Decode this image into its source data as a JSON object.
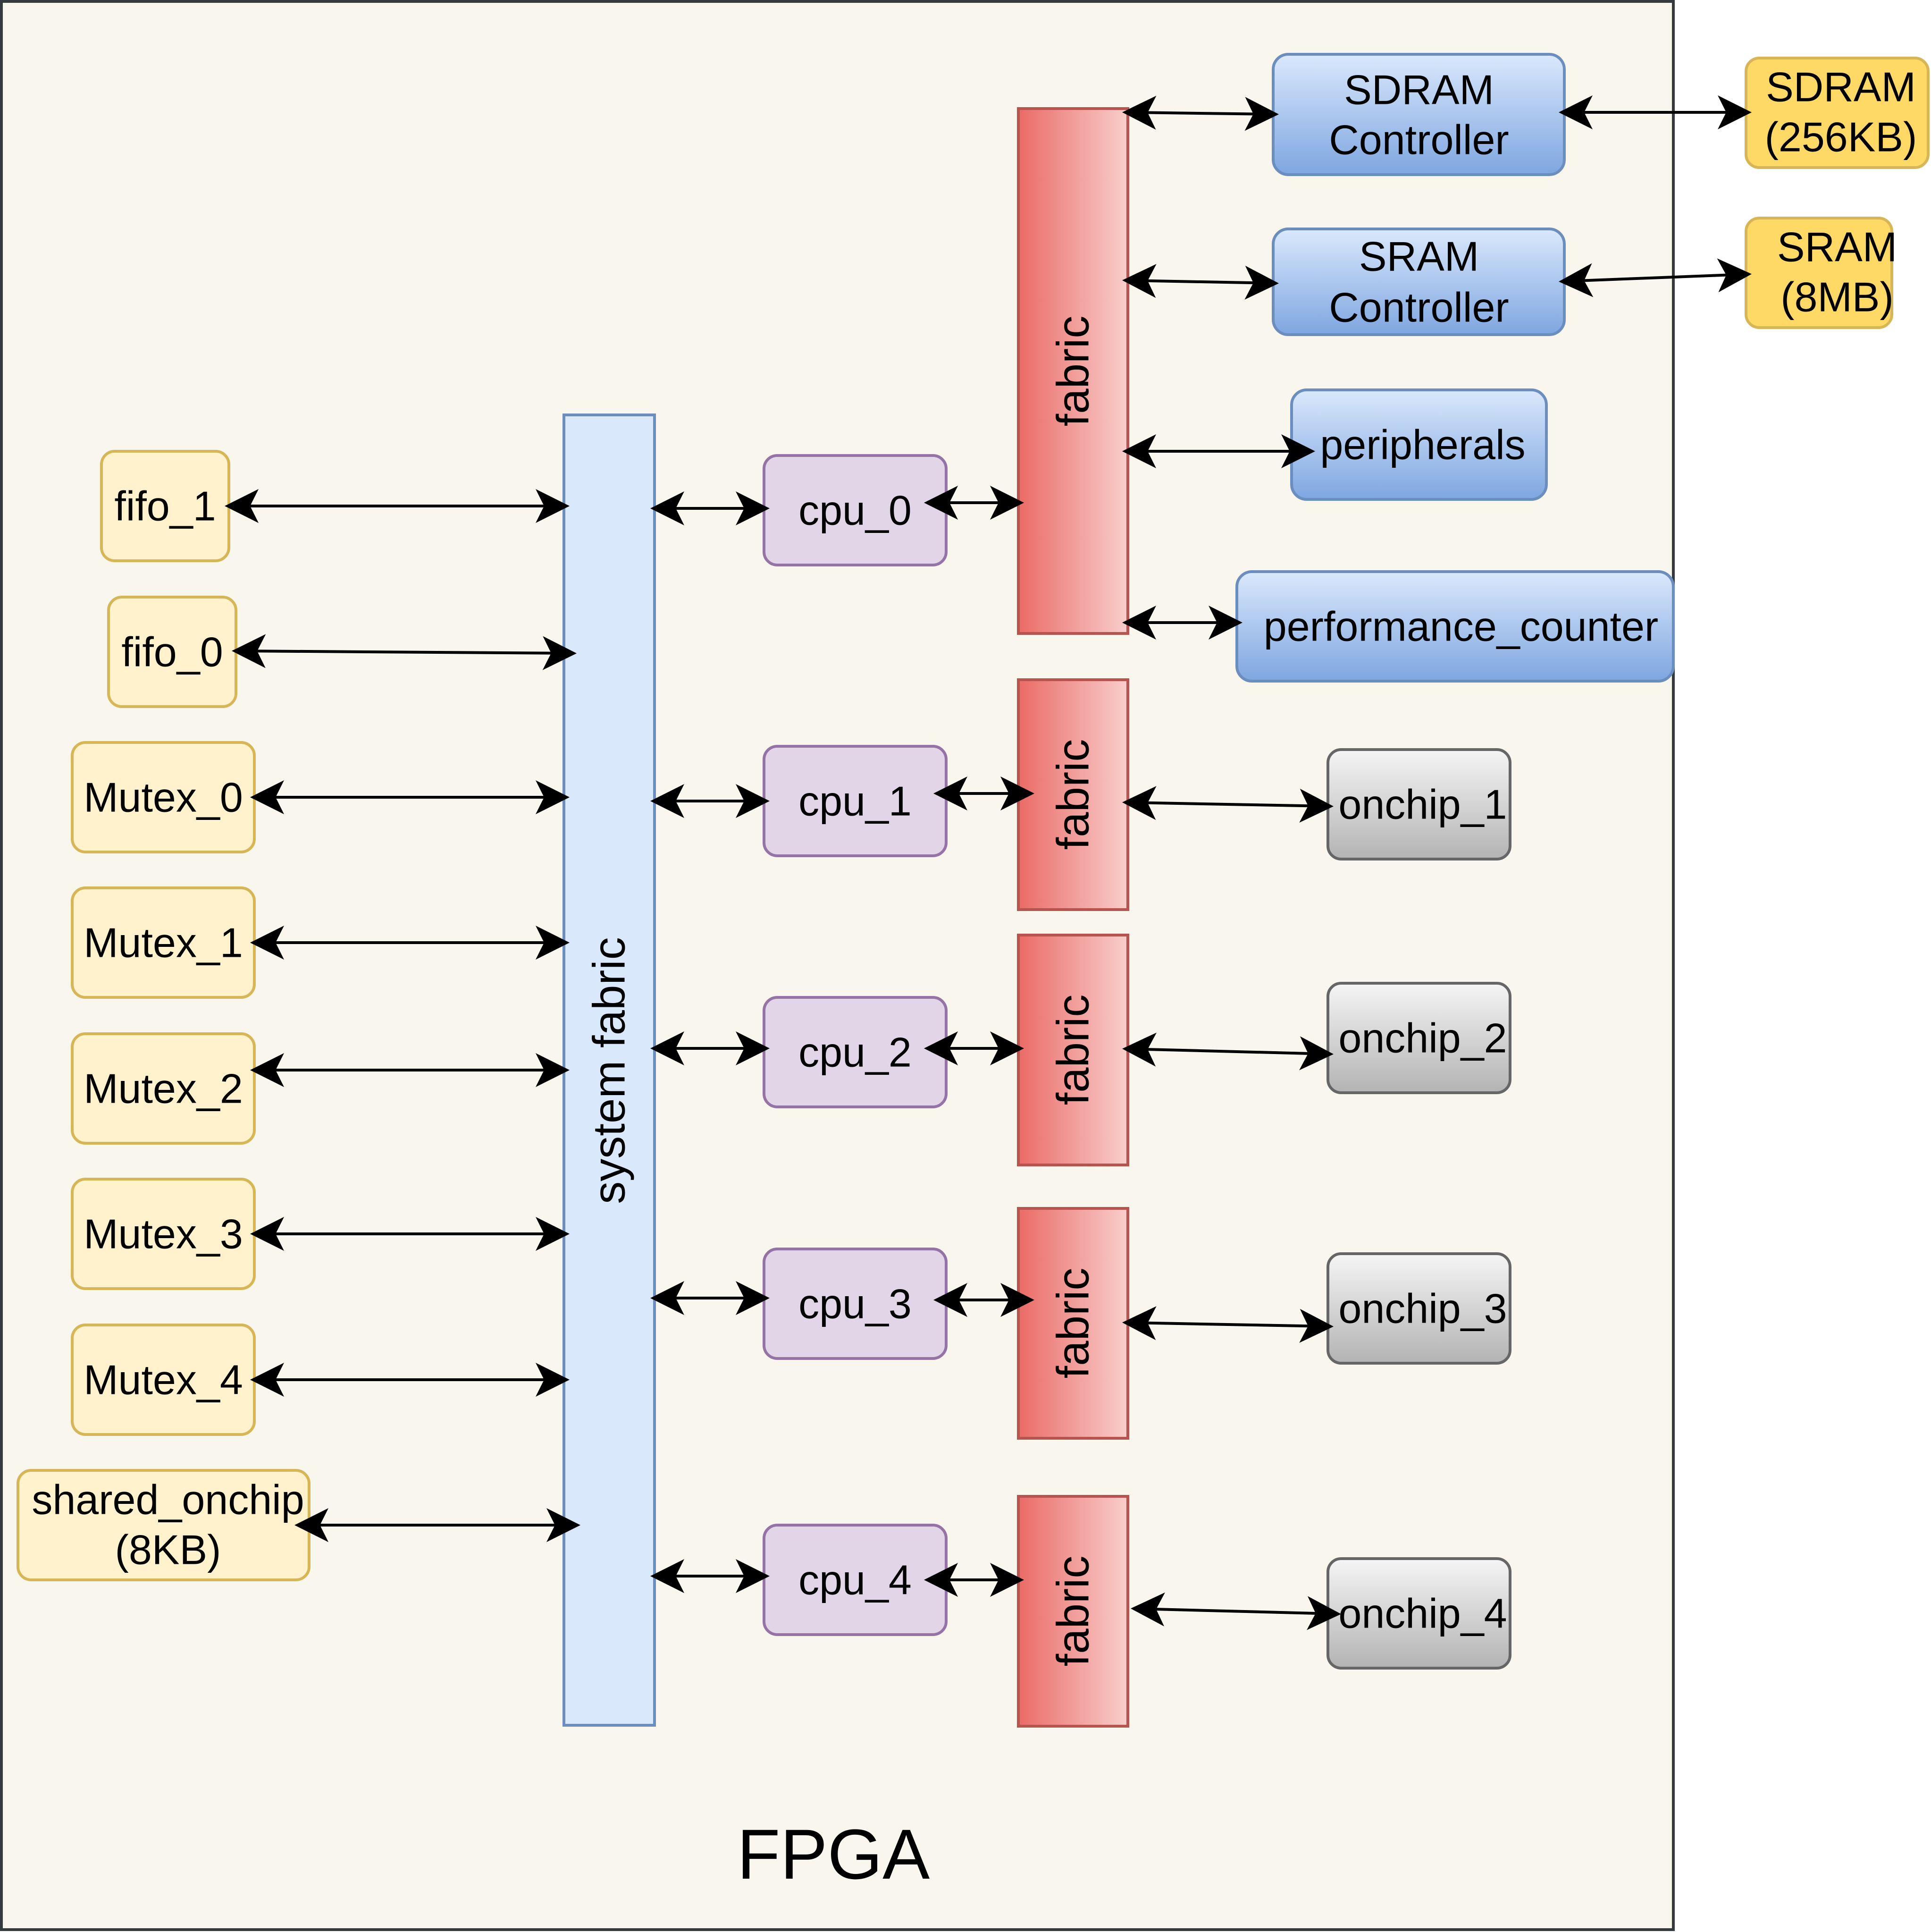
{
  "container_label": "FPGA",
  "system_fabric_label": "system fabric",
  "left_blocks": {
    "fifo_1": "fifo_1",
    "fifo_0": "fifo_0",
    "mutex_0": "Mutex_0",
    "mutex_1": "Mutex_1",
    "mutex_2": "Mutex_2",
    "mutex_3": "Mutex_3",
    "mutex_4": "Mutex_4",
    "shared_onchip_line1": "shared_onchip",
    "shared_onchip_line2": "(8KB)"
  },
  "cpus": {
    "cpu_0": "cpu_0",
    "cpu_1": "cpu_1",
    "cpu_2": "cpu_2",
    "cpu_3": "cpu_3",
    "cpu_4": "cpu_4"
  },
  "fabric_label": "fabric",
  "controllers": {
    "sdram_line1": "SDRAM",
    "sdram_line2": "Controller",
    "sram_line1": "SRAM",
    "sram_line2": "Controller",
    "peripherals": "peripherals",
    "performance_counter": "performance_counter"
  },
  "memories": {
    "sdram_line1": "SDRAM",
    "sdram_line2": "(256KB)",
    "sram_line1": "SRAM",
    "sram_line2": "(8MB)"
  },
  "onchips": {
    "onchip_1": "onchip_1",
    "onchip_2": "onchip_2",
    "onchip_3": "onchip_3",
    "onchip_4": "onchip_4"
  },
  "colors": {
    "background": "#f9f7ed",
    "container_border": "#36393d",
    "yellow_fill": "#fff2cc",
    "yellow_stroke": "#d6b656",
    "gold_fill": "#ffd966",
    "blue_fill": "#dae8fc",
    "blue_stroke": "#6c8ebf",
    "controller_top": "#dae8fc",
    "controller_bottom": "#7ea6e0",
    "purple_fill": "#e1d5e7",
    "purple_stroke": "#9673a6",
    "fabric_left": "#ea6b66",
    "fabric_right": "#f8cecc",
    "fabric_stroke": "#b85450",
    "gray_top": "#f5f5f5",
    "gray_bottom": "#b3b3b3",
    "gray_stroke": "#666666"
  }
}
